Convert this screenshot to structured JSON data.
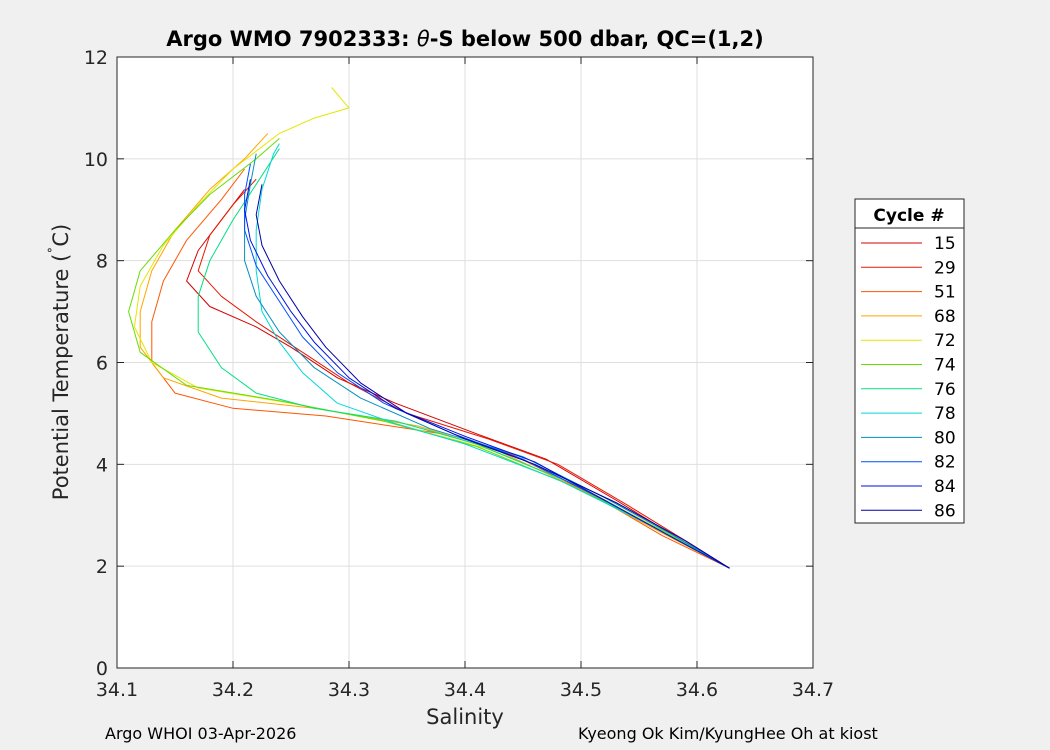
{
  "chart_data": {
    "type": "line",
    "title_prefix": "Argo WMO 7902333: ",
    "title_symbol": "θ",
    "title_suffix": "-S below 500 dbar,  QC=(1,2)",
    "xlabel": "Salinity",
    "ylabel_prefix": "Potential Temperature (",
    "ylabel_degree": "˚",
    "ylabel_suffix": "C)",
    "xlim": [
      34.1,
      34.7
    ],
    "ylim": [
      0,
      12
    ],
    "xticks": [
      "34.1",
      "34.2",
      "34.3",
      "34.4",
      "34.5",
      "34.6",
      "34.7"
    ],
    "yticks": [
      "0",
      "2",
      "4",
      "6",
      "8",
      "10",
      "12"
    ],
    "grid": true,
    "legend_title": "Cycle #",
    "legend_position": "right-outside",
    "series": [
      {
        "name": "15",
        "color": "#d40000",
        "points": [
          [
            34.628,
            1.96
          ],
          [
            34.58,
            2.6
          ],
          [
            34.53,
            3.3
          ],
          [
            34.47,
            4.1
          ],
          [
            34.41,
            4.6
          ],
          [
            34.34,
            5.2
          ],
          [
            34.29,
            5.7
          ],
          [
            34.25,
            6.3
          ],
          [
            34.22,
            6.7
          ],
          [
            34.18,
            7.1
          ],
          [
            34.16,
            7.6
          ],
          [
            34.17,
            8.2
          ],
          [
            34.19,
            8.8
          ],
          [
            34.21,
            9.4
          ]
        ]
      },
      {
        "name": "29",
        "color": "#e61a00",
        "points": [
          [
            34.628,
            1.96
          ],
          [
            34.59,
            2.5
          ],
          [
            34.54,
            3.2
          ],
          [
            34.48,
            4.0
          ],
          [
            34.42,
            4.5
          ],
          [
            34.35,
            5.0
          ],
          [
            34.3,
            5.6
          ],
          [
            34.26,
            6.2
          ],
          [
            34.22,
            6.8
          ],
          [
            34.19,
            7.3
          ],
          [
            34.17,
            7.8
          ],
          [
            34.18,
            8.5
          ],
          [
            34.2,
            9.1
          ],
          [
            34.22,
            9.6
          ]
        ]
      },
      {
        "name": "51",
        "color": "#ff5500",
        "points": [
          [
            34.628,
            1.96
          ],
          [
            34.57,
            2.6
          ],
          [
            34.51,
            3.4
          ],
          [
            34.44,
            4.2
          ],
          [
            34.38,
            4.6
          ],
          [
            34.28,
            4.95
          ],
          [
            34.2,
            5.1
          ],
          [
            34.15,
            5.4
          ],
          [
            34.13,
            6.0
          ],
          [
            34.13,
            6.8
          ],
          [
            34.14,
            7.6
          ],
          [
            34.16,
            8.4
          ],
          [
            34.19,
            9.2
          ],
          [
            34.21,
            9.8
          ]
        ]
      },
      {
        "name": "68",
        "color": "#ffa500",
        "points": [
          [
            34.628,
            1.96
          ],
          [
            34.57,
            2.65
          ],
          [
            34.5,
            3.5
          ],
          [
            34.43,
            4.25
          ],
          [
            34.36,
            4.75
          ],
          [
            34.27,
            5.1
          ],
          [
            34.19,
            5.3
          ],
          [
            34.14,
            5.7
          ],
          [
            34.12,
            6.3
          ],
          [
            34.12,
            7.0
          ],
          [
            34.13,
            7.8
          ],
          [
            34.15,
            8.6
          ],
          [
            34.18,
            9.4
          ],
          [
            34.21,
            10.0
          ],
          [
            34.23,
            10.5
          ]
        ]
      },
      {
        "name": "72",
        "color": "#e6e600",
        "points": [
          [
            34.628,
            1.96
          ],
          [
            34.57,
            2.7
          ],
          [
            34.5,
            3.55
          ],
          [
            34.42,
            4.3
          ],
          [
            34.34,
            4.8
          ],
          [
            34.25,
            5.2
          ],
          [
            34.17,
            5.5
          ],
          [
            34.13,
            6.0
          ],
          [
            34.115,
            6.7
          ],
          [
            34.12,
            7.5
          ],
          [
            34.14,
            8.3
          ],
          [
            34.17,
            9.1
          ],
          [
            34.2,
            9.8
          ],
          [
            34.24,
            10.5
          ],
          [
            34.27,
            10.8
          ],
          [
            34.3,
            11.0
          ],
          [
            34.285,
            11.4
          ]
        ]
      },
      {
        "name": "74",
        "color": "#66dd00",
        "points": [
          [
            34.628,
            1.96
          ],
          [
            34.57,
            2.7
          ],
          [
            34.49,
            3.6
          ],
          [
            34.41,
            4.35
          ],
          [
            34.33,
            4.85
          ],
          [
            34.24,
            5.25
          ],
          [
            34.16,
            5.55
          ],
          [
            34.12,
            6.2
          ],
          [
            34.11,
            7.0
          ],
          [
            34.12,
            7.8
          ],
          [
            34.15,
            8.6
          ],
          [
            34.18,
            9.3
          ],
          [
            34.22,
            10.0
          ],
          [
            34.24,
            10.4
          ]
        ]
      },
      {
        "name": "76",
        "color": "#00e080",
        "points": [
          [
            34.628,
            1.96
          ],
          [
            34.56,
            2.8
          ],
          [
            34.49,
            3.65
          ],
          [
            34.41,
            4.4
          ],
          [
            34.34,
            4.85
          ],
          [
            34.27,
            5.1
          ],
          [
            34.22,
            5.4
          ],
          [
            34.19,
            5.9
          ],
          [
            34.17,
            6.6
          ],
          [
            34.17,
            7.3
          ],
          [
            34.18,
            8.0
          ],
          [
            34.2,
            8.8
          ],
          [
            34.22,
            9.5
          ],
          [
            34.24,
            10.2
          ]
        ]
      },
      {
        "name": "78",
        "color": "#00d8d8",
        "points": [
          [
            34.628,
            1.96
          ],
          [
            34.56,
            2.8
          ],
          [
            34.48,
            3.7
          ],
          [
            34.4,
            4.4
          ],
          [
            34.34,
            4.8
          ],
          [
            34.29,
            5.2
          ],
          [
            34.26,
            5.8
          ],
          [
            34.24,
            6.4
          ],
          [
            34.225,
            7.0
          ],
          [
            34.22,
            7.8
          ],
          [
            34.22,
            8.6
          ],
          [
            34.225,
            9.4
          ],
          [
            34.235,
            10.1
          ],
          [
            34.24,
            10.3
          ]
        ]
      },
      {
        "name": "80",
        "color": "#0090c0",
        "points": [
          [
            34.628,
            1.96
          ],
          [
            34.58,
            2.6
          ],
          [
            34.52,
            3.35
          ],
          [
            34.45,
            4.15
          ],
          [
            34.37,
            4.7
          ],
          [
            34.31,
            5.3
          ],
          [
            34.27,
            5.9
          ],
          [
            34.24,
            6.6
          ],
          [
            34.22,
            7.3
          ],
          [
            34.21,
            8.0
          ],
          [
            34.21,
            8.8
          ],
          [
            34.215,
            9.5
          ],
          [
            34.22,
            10.1
          ]
        ]
      },
      {
        "name": "82",
        "color": "#0050ff",
        "points": [
          [
            34.628,
            1.96
          ],
          [
            34.58,
            2.55
          ],
          [
            34.52,
            3.3
          ],
          [
            34.45,
            4.1
          ],
          [
            34.39,
            4.6
          ],
          [
            34.33,
            5.2
          ],
          [
            34.29,
            5.8
          ],
          [
            34.26,
            6.5
          ],
          [
            34.24,
            7.2
          ],
          [
            34.22,
            7.9
          ],
          [
            34.21,
            8.6
          ],
          [
            34.21,
            9.3
          ],
          [
            34.215,
            9.9
          ]
        ]
      },
      {
        "name": "84",
        "color": "#0010e0",
        "points": [
          [
            34.628,
            1.96
          ],
          [
            34.58,
            2.55
          ],
          [
            34.52,
            3.3
          ],
          [
            34.46,
            4.05
          ],
          [
            34.4,
            4.55
          ],
          [
            34.34,
            5.1
          ],
          [
            34.3,
            5.7
          ],
          [
            34.27,
            6.4
          ],
          [
            34.25,
            7.0
          ],
          [
            34.23,
            7.7
          ],
          [
            34.215,
            8.4
          ],
          [
            34.21,
            9.0
          ],
          [
            34.215,
            9.6
          ]
        ]
      },
      {
        "name": "86",
        "color": "#0000a8",
        "points": [
          [
            34.628,
            1.96
          ],
          [
            34.59,
            2.5
          ],
          [
            34.53,
            3.25
          ],
          [
            34.46,
            4.0
          ],
          [
            34.4,
            4.5
          ],
          [
            34.35,
            5.0
          ],
          [
            34.31,
            5.6
          ],
          [
            34.28,
            6.3
          ],
          [
            34.26,
            6.9
          ],
          [
            34.24,
            7.6
          ],
          [
            34.225,
            8.3
          ],
          [
            34.22,
            8.9
          ],
          [
            34.225,
            9.5
          ]
        ]
      }
    ]
  },
  "footer": {
    "left": "Argo WHOI 03-Apr-2026",
    "right": "Kyeong Ok Kim/KyungHee Oh at kiost"
  }
}
